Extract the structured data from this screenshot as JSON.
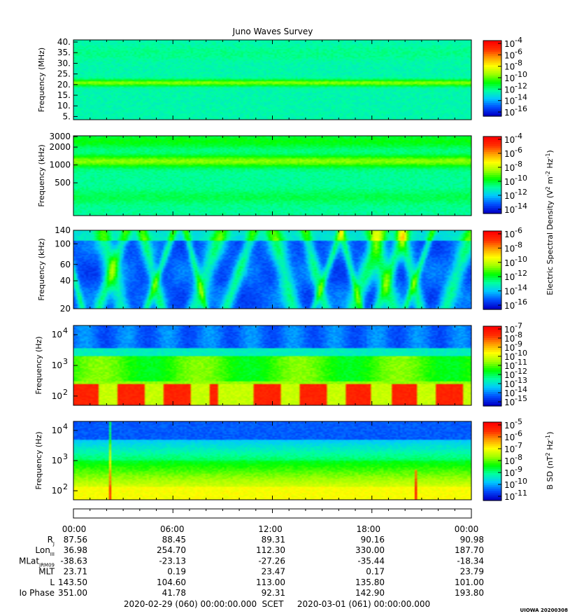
{
  "chart_data": {
    "type": "heatmap",
    "title": "Juno Waves Survey",
    "colorscale": [
      "#0000c8",
      "#0050ff",
      "#00c8ff",
      "#00ffa0",
      "#00ff00",
      "#a0ff00",
      "#ffff00",
      "#ffa000",
      "#ff3000",
      "#ff0000"
    ],
    "panels": [
      {
        "name": "panel-hfwbr",
        "ylabel": "Frequency (MHz)",
        "y_scale": "linear",
        "ylim": [
          3.5,
          41
        ],
        "ticks": [
          {
            "label": "40.",
            "v": 40
          },
          {
            "label": "35.",
            "v": 35
          },
          {
            "label": "30.",
            "v": 30
          },
          {
            "label": "25.",
            "v": 25
          },
          {
            "label": "20.",
            "v": 20
          },
          {
            "label": "15.",
            "v": 15
          },
          {
            "label": "10.",
            "v": 10
          },
          {
            "label": "5.",
            "v": 5
          }
        ],
        "colorbar": {
          "ticks": [
            "-4",
            "-6",
            "-8",
            "-10",
            "-12",
            "-14",
            "-16"
          ]
        },
        "pattern": "hf"
      },
      {
        "name": "panel-hfr",
        "ylabel": "Frequency (kHz)",
        "y_scale": "log",
        "ylim": [
          140,
          3100
        ],
        "ticks": [
          {
            "label": "3000",
            "v": 3000
          },
          {
            "label": "2000",
            "v": 2000
          },
          {
            "label": "1000",
            "v": 1000
          },
          {
            "label": "500",
            "v": 500
          }
        ],
        "colorbar": {
          "ticks": [
            "-4",
            "-6",
            "-8",
            "-10",
            "-12",
            "-14"
          ]
        },
        "pattern": "mf"
      },
      {
        "name": "panel-lfrh",
        "ylabel": "Frequency (kHz)",
        "y_scale": "log",
        "ylim": [
          20,
          140
        ],
        "ticks": [
          {
            "label": "140",
            "v": 140
          },
          {
            "label": "100",
            "v": 100
          },
          {
            "label": "60",
            "v": 60
          },
          {
            "label": "40",
            "v": 40
          },
          {
            "label": "20",
            "v": 20
          }
        ],
        "colorbar": {
          "ticks": [
            "-6",
            "-8",
            "-10",
            "-12",
            "-14",
            "-16"
          ]
        },
        "pattern": "lf"
      },
      {
        "name": "panel-lfrl-e",
        "ylabel": "Frequency (Hz)",
        "y_scale": "log",
        "ylim": [
          50,
          20000
        ],
        "ticks": [
          {
            "label": "10",
            "exp": "4",
            "v": 10000
          },
          {
            "label": "10",
            "exp": "3",
            "v": 1000
          },
          {
            "label": "10",
            "exp": "2",
            "v": 100
          }
        ],
        "colorbar": {
          "ticks": [
            "-7",
            "-8",
            "-9",
            "-10",
            "-11",
            "-12",
            "-13",
            "-14",
            "-15"
          ]
        },
        "pattern": "elf"
      },
      {
        "name": "panel-lfrl-b",
        "ylabel": "Frequency (Hz)",
        "y_scale": "log",
        "ylim": [
          50,
          20000
        ],
        "ticks": [
          {
            "label": "10",
            "exp": "4",
            "v": 10000
          },
          {
            "label": "10",
            "exp": "3",
            "v": 1000
          },
          {
            "label": "10",
            "exp": "2",
            "v": 100
          }
        ],
        "colorbar": {
          "ticks": [
            "-5",
            "-6",
            "-7",
            "-8",
            "-9",
            "-10",
            "-11"
          ]
        },
        "pattern": "bf"
      }
    ],
    "colorbar_labels": {
      "electric": {
        "text": "Electric Spectral Density (V",
        "sup1": "2",
        "mid": " m",
        "sup2": "-2",
        "mid2": " Hz",
        "sup3": "-1",
        "end": ")"
      },
      "magnetic": {
        "text": "B SD (nT",
        "sup1": "2",
        "mid": " Hz",
        "sup2": "-1",
        "end": ")"
      }
    },
    "colorbar_base": "10",
    "x": [
      "00:00",
      "06:00",
      "12:00",
      "18:00",
      "00:00"
    ],
    "ephemeris": [
      {
        "label": "R",
        "sub": "J",
        "values": [
          "87.56",
          "88.45",
          "89.31",
          "90.16",
          "90.98"
        ]
      },
      {
        "label": "Lon",
        "sub": "III",
        "values": [
          "36.98",
          "254.70",
          "112.30",
          "330.00",
          "187.70"
        ]
      },
      {
        "label": "MLat",
        "sub": "JRM09",
        "values": [
          "-38.63",
          "-23.13",
          "-27.26",
          "-35.44",
          "-18.34"
        ]
      },
      {
        "label": "MLT",
        "sub": "",
        "values": [
          "23.71",
          "0.19",
          "23.47",
          "0.17",
          "23.79"
        ]
      },
      {
        "label": "L",
        "sub": "",
        "values": [
          "143.50",
          "104.60",
          "113.00",
          "135.80",
          "101.00"
        ]
      },
      {
        "label": "Io Phase",
        "sub": "",
        "values": [
          "351.00",
          "41.78",
          "92.31",
          "142.90",
          "193.80"
        ]
      }
    ],
    "footer": {
      "start": "2020-02-29 (060) 00:00:00.000",
      "scet": "SCET",
      "end": "2020-03-01 (061) 00:00:00.000"
    },
    "stamp": "UIOWA 20200308"
  }
}
